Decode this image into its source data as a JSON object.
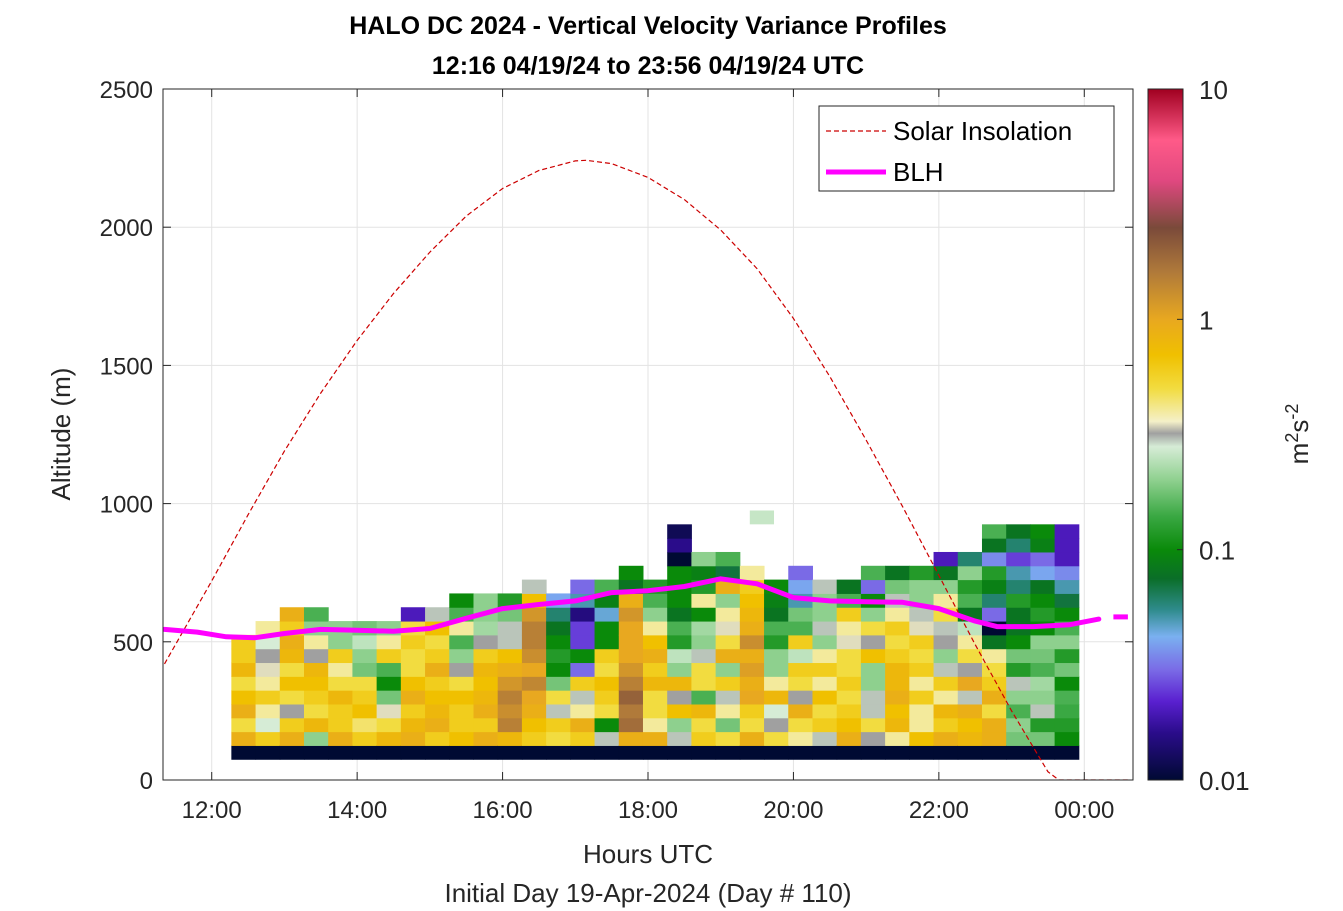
{
  "chart_data": {
    "type": "heatmap",
    "title": "HALO DC 2024 - Vertical Velocity Variance Profiles",
    "subtitle": "12:16 04/19/24 to 23:56 04/19/24  UTC",
    "xlabel": "Hours UTC",
    "ylabel": "Altitude (m)",
    "footer": "Initial Day 19-Apr-2024 (Day # 110)",
    "xlim": [
      11.33,
      24.67
    ],
    "ylim": [
      0,
      2500
    ],
    "x_ticks": [
      {
        "value": 12,
        "label": "12:00"
      },
      {
        "value": 14,
        "label": "14:00"
      },
      {
        "value": 16,
        "label": "16:00"
      },
      {
        "value": 18,
        "label": "18:00"
      },
      {
        "value": 20,
        "label": "20:00"
      },
      {
        "value": 22,
        "label": "22:00"
      },
      {
        "value": 24,
        "label": "00:00"
      }
    ],
    "y_ticks": [
      {
        "value": 0,
        "label": "0"
      },
      {
        "value": 500,
        "label": "500"
      },
      {
        "value": 1000,
        "label": "1000"
      },
      {
        "value": 1500,
        "label": "1500"
      },
      {
        "value": 2000,
        "label": "2000"
      },
      {
        "value": 2500,
        "label": "2500"
      }
    ],
    "grid": true,
    "legend": {
      "placement": "top-right",
      "entries": [
        {
          "label": "Solar Insolation",
          "style": "dashed",
          "color": "#cc0000"
        },
        {
          "label": "BLH",
          "style": "solid",
          "color": "#ff00ff"
        }
      ]
    },
    "colorbar": {
      "scale": "log",
      "range": [
        0.01,
        10
      ],
      "ticks": [
        {
          "value": 10,
          "label": "10"
        },
        {
          "value": 1,
          "label": "1"
        },
        {
          "value": 0.1,
          "label": "0.1"
        },
        {
          "value": 0.01,
          "label": "0.01"
        }
      ],
      "unit_base": "m",
      "unit_sup1": "2",
      "unit_mid": "s",
      "unit_sup2": "-2",
      "stops": [
        {
          "value": 0.01,
          "color": "#000a33"
        },
        {
          "value": 0.016,
          "color": "#2a0c8a"
        },
        {
          "value": 0.022,
          "color": "#5a20d0"
        },
        {
          "value": 0.03,
          "color": "#7a6ae6"
        },
        {
          "value": 0.042,
          "color": "#7ab0f0"
        },
        {
          "value": 0.055,
          "color": "#2e8b8b"
        },
        {
          "value": 0.075,
          "color": "#0a6e28"
        },
        {
          "value": 0.1,
          "color": "#0a8a0a"
        },
        {
          "value": 0.14,
          "color": "#3aa843"
        },
        {
          "value": 0.2,
          "color": "#8ed08e"
        },
        {
          "value": 0.28,
          "color": "#d6ecd6"
        },
        {
          "value": 0.32,
          "color": "#a0a0a0"
        },
        {
          "value": 0.36,
          "color": "#f4f0c8"
        },
        {
          "value": 0.5,
          "color": "#f2dc40"
        },
        {
          "value": 0.7,
          "color": "#f0c000"
        },
        {
          "value": 1.0,
          "color": "#e8a820"
        },
        {
          "value": 1.6,
          "color": "#b07a3a"
        },
        {
          "value": 2.5,
          "color": "#7a4a3a"
        },
        {
          "value": 4.0,
          "color": "#e04880"
        },
        {
          "value": 6.0,
          "color": "#ff5a88"
        },
        {
          "value": 10,
          "color": "#a00020"
        }
      ]
    },
    "solar_insolation": {
      "color": "#cc0000",
      "scaled_altitude": [
        {
          "x": 11.35,
          "y": 420
        },
        {
          "x": 12.0,
          "y": 720
        },
        {
          "x": 12.5,
          "y": 960
        },
        {
          "x": 13.0,
          "y": 1190
        },
        {
          "x": 13.5,
          "y": 1400
        },
        {
          "x": 14.0,
          "y": 1590
        },
        {
          "x": 14.5,
          "y": 1760
        },
        {
          "x": 15.0,
          "y": 1910
        },
        {
          "x": 15.5,
          "y": 2040
        },
        {
          "x": 16.0,
          "y": 2140
        },
        {
          "x": 16.5,
          "y": 2205
        },
        {
          "x": 17.0,
          "y": 2240
        },
        {
          "x": 17.15,
          "y": 2242
        },
        {
          "x": 17.5,
          "y": 2230
        },
        {
          "x": 18.0,
          "y": 2180
        },
        {
          "x": 18.5,
          "y": 2100
        },
        {
          "x": 19.0,
          "y": 1990
        },
        {
          "x": 19.5,
          "y": 1850
        },
        {
          "x": 20.0,
          "y": 1670
        },
        {
          "x": 20.5,
          "y": 1460
        },
        {
          "x": 21.0,
          "y": 1230
        },
        {
          "x": 21.5,
          "y": 990
        },
        {
          "x": 22.0,
          "y": 740
        },
        {
          "x": 22.5,
          "y": 490
        },
        {
          "x": 23.0,
          "y": 250
        },
        {
          "x": 23.5,
          "y": 30
        },
        {
          "x": 23.65,
          "y": 0
        },
        {
          "x": 24.6,
          "y": 0
        }
      ]
    },
    "blh": {
      "color": "#ff00ff",
      "points": [
        {
          "x": 11.35,
          "y": 545
        },
        {
          "x": 11.8,
          "y": 535
        },
        {
          "x": 12.2,
          "y": 518
        },
        {
          "x": 12.6,
          "y": 515
        },
        {
          "x": 13.0,
          "y": 530
        },
        {
          "x": 13.5,
          "y": 545
        },
        {
          "x": 14.0,
          "y": 542
        },
        {
          "x": 14.5,
          "y": 538
        },
        {
          "x": 15.0,
          "y": 548
        },
        {
          "x": 15.5,
          "y": 585
        },
        {
          "x": 16.0,
          "y": 620
        },
        {
          "x": 16.5,
          "y": 635
        },
        {
          "x": 17.0,
          "y": 648
        },
        {
          "x": 17.5,
          "y": 678
        },
        {
          "x": 18.0,
          "y": 685
        },
        {
          "x": 18.5,
          "y": 700
        },
        {
          "x": 19.0,
          "y": 728
        },
        {
          "x": 19.5,
          "y": 710
        },
        {
          "x": 20.0,
          "y": 660
        },
        {
          "x": 20.5,
          "y": 648
        },
        {
          "x": 21.0,
          "y": 645
        },
        {
          "x": 21.5,
          "y": 643
        },
        {
          "x": 22.0,
          "y": 620
        },
        {
          "x": 22.5,
          "y": 575
        },
        {
          "x": 22.8,
          "y": 555
        },
        {
          "x": 23.3,
          "y": 555
        },
        {
          "x": 23.8,
          "y": 562
        },
        {
          "x": 24.2,
          "y": 582
        }
      ],
      "extra_segment": [
        {
          "x": 24.4,
          "y": 590
        },
        {
          "x": 24.6,
          "y": 590
        }
      ]
    },
    "heatmap": {
      "x_start": 12.27,
      "dx": 0.333,
      "y_bins": [
        100,
        150,
        200,
        250,
        300,
        350,
        400,
        450,
        500,
        550,
        600,
        650,
        700,
        750,
        800,
        850,
        900
      ],
      "dy": 50,
      "columns": [
        [
          0.01,
          0.9,
          0.5,
          0.9,
          0.7,
          0.5,
          0.8,
          0.6,
          0.6,
          null,
          null,
          null,
          null,
          null,
          null,
          null,
          null
        ],
        [
          0.01,
          0.6,
          0.28,
          0.4,
          0.6,
          0.4,
          0.35,
          0.32,
          0.28,
          0.4,
          null,
          null,
          null,
          null,
          null,
          null,
          null
        ],
        [
          0.01,
          0.9,
          0.6,
          0.32,
          0.5,
          0.7,
          0.5,
          0.8,
          0.9,
          0.6,
          0.9,
          null,
          null,
          null,
          null,
          null,
          null
        ],
        [
          0.01,
          0.2,
          0.8,
          0.5,
          0.6,
          0.7,
          0.8,
          0.32,
          0.4,
          0.2,
          0.15,
          null,
          null,
          null,
          null,
          null,
          null
        ],
        [
          0.01,
          0.9,
          0.6,
          0.6,
          0.8,
          0.5,
          0.4,
          0.6,
          0.2,
          0.2,
          null,
          null,
          null,
          null,
          null,
          null,
          null
        ],
        [
          0.01,
          0.6,
          0.45,
          0.7,
          0.6,
          0.5,
          0.18,
          0.2,
          0.25,
          0.18,
          null,
          null,
          null,
          null,
          null,
          null,
          null
        ],
        [
          0.01,
          0.8,
          0.5,
          0.35,
          0.18,
          0.1,
          0.15,
          0.6,
          0.4,
          0.2,
          null,
          null,
          null,
          null,
          null,
          null,
          null
        ],
        [
          0.01,
          0.9,
          0.8,
          0.6,
          0.9,
          0.7,
          0.5,
          0.5,
          0.6,
          0.5,
          0.02,
          null,
          null,
          null,
          null,
          null,
          null
        ],
        [
          0.01,
          0.6,
          0.9,
          0.8,
          0.7,
          0.6,
          0.9,
          0.6,
          0.5,
          0.7,
          0.3,
          null,
          null,
          null,
          null,
          null,
          null
        ],
        [
          0.01,
          0.7,
          0.6,
          0.6,
          0.7,
          0.5,
          0.32,
          0.2,
          0.15,
          0.4,
          0.15,
          0.1,
          null,
          null,
          null,
          null,
          null
        ],
        [
          0.01,
          0.9,
          0.6,
          0.9,
          0.8,
          0.7,
          0.8,
          0.6,
          0.32,
          0.22,
          0.2,
          0.2,
          null,
          null,
          null,
          null,
          null
        ],
        [
          0.01,
          0.8,
          1.5,
          1.3,
          1.5,
          1.2,
          0.9,
          0.7,
          0.3,
          0.3,
          0.18,
          0.12,
          null,
          null,
          null,
          null,
          null
        ],
        [
          0.01,
          0.6,
          0.7,
          0.9,
          1.0,
          1.4,
          1.0,
          1.3,
          1.5,
          1.5,
          1.2,
          0.7,
          0.3,
          null,
          null,
          null,
          null
        ],
        [
          0.01,
          0.5,
          0.6,
          0.3,
          0.5,
          0.18,
          0.1,
          0.12,
          0.1,
          0.08,
          0.06,
          0.04,
          null,
          null,
          null,
          null,
          null
        ],
        [
          0.01,
          0.6,
          0.9,
          0.4,
          0.3,
          0.6,
          0.03,
          0.1,
          0.025,
          0.025,
          0.015,
          0.05,
          0.03,
          null,
          null,
          null,
          null
        ],
        [
          0.01,
          0.3,
          0.1,
          0.5,
          0.6,
          0.7,
          0.5,
          0.6,
          0.1,
          0.1,
          0.045,
          0.09,
          0.15,
          null,
          null,
          null,
          null
        ],
        [
          0.01,
          0.9,
          1.8,
          1.6,
          2.0,
          1.5,
          1.2,
          1.0,
          1.0,
          1.0,
          1.2,
          0.9,
          0.08,
          0.1,
          null,
          null,
          null
        ],
        [
          0.01,
          0.9,
          0.4,
          0.5,
          0.5,
          0.8,
          0.6,
          0.9,
          0.7,
          0.4,
          0.2,
          0.15,
          0.12,
          null,
          null,
          null,
          null
        ],
        [
          0.01,
          0.3,
          0.2,
          0.7,
          0.32,
          0.8,
          0.2,
          0.25,
          0.12,
          0.15,
          0.08,
          0.1,
          0.1,
          0.1,
          0.01,
          0.016,
          0.012
        ],
        [
          0.01,
          0.6,
          0.5,
          0.8,
          0.15,
          0.5,
          0.5,
          0.3,
          0.2,
          0.22,
          0.1,
          0.4,
          0.12,
          0.09,
          0.2,
          null,
          null
        ],
        [
          0.01,
          0.5,
          0.18,
          0.4,
          0.3,
          0.6,
          0.2,
          0.9,
          0.5,
          0.35,
          0.4,
          0.2,
          0.9,
          0.07,
          0.15,
          null,
          null
        ],
        [
          0.01,
          0.9,
          0.5,
          0.6,
          1.0,
          0.9,
          1.1,
          0.9,
          1.3,
          0.9,
          0.8,
          0.7,
          0.6,
          0.4,
          null,
          null,
          null
        ],
        [
          0.01,
          0.5,
          0.32,
          0.28,
          0.8,
          0.4,
          0.2,
          0.2,
          0.12,
          0.15,
          0.08,
          0.09,
          0.1,
          null,
          null,
          null,
          null
        ],
        [
          0.01,
          0.4,
          0.5,
          0.9,
          0.32,
          0.5,
          0.6,
          0.25,
          0.6,
          0.15,
          0.18,
          0.05,
          0.04,
          0.03,
          null,
          null,
          null
        ],
        [
          0.01,
          0.3,
          0.6,
          0.5,
          0.7,
          0.4,
          0.6,
          0.4,
          0.2,
          0.3,
          0.2,
          0.2,
          0.3,
          null,
          null,
          null,
          null
        ],
        [
          0.01,
          0.9,
          0.7,
          0.6,
          0.5,
          0.6,
          0.5,
          0.5,
          0.35,
          0.4,
          0.6,
          0.15,
          0.08,
          null,
          null,
          null,
          null
        ],
        [
          0.01,
          0.32,
          0.5,
          0.3,
          0.3,
          0.2,
          0.2,
          0.7,
          0.32,
          0.5,
          0.2,
          0.1,
          0.03,
          0.15,
          null,
          null,
          null
        ],
        [
          0.01,
          0.4,
          0.8,
          0.7,
          0.9,
          0.8,
          0.8,
          0.6,
          0.5,
          0.6,
          0.4,
          0.3,
          0.18,
          0.08,
          null,
          null,
          null
        ],
        [
          0.01,
          0.7,
          0.4,
          0.4,
          0.6,
          0.4,
          0.6,
          0.5,
          0.6,
          0.35,
          0.3,
          0.2,
          0.2,
          0.12,
          null,
          null,
          null
        ],
        [
          0.01,
          0.9,
          0.6,
          0.8,
          0.4,
          0.6,
          0.3,
          0.2,
          0.32,
          0.3,
          0.5,
          0.4,
          0.2,
          0.08,
          0.02,
          null,
          null
        ],
        [
          0.01,
          0.8,
          0.7,
          0.9,
          0.3,
          1.0,
          0.32,
          0.5,
          0.4,
          0.25,
          0.08,
          0.15,
          0.12,
          0.2,
          0.06,
          null,
          null
        ],
        [
          0.01,
          0.9,
          0.9,
          0.5,
          0.9,
          0.6,
          0.5,
          0.4,
          0.08,
          0.01,
          0.03,
          0.06,
          0.09,
          0.12,
          0.035,
          0.08,
          0.15
        ],
        [
          0.01,
          0.18,
          0.2,
          0.15,
          0.2,
          0.3,
          0.12,
          0.18,
          0.1,
          0.08,
          0.08,
          0.12,
          0.06,
          0.05,
          0.025,
          0.06,
          0.08
        ],
        [
          0.01,
          0.18,
          0.12,
          0.3,
          0.2,
          0.22,
          0.15,
          0.18,
          0.2,
          0.1,
          0.12,
          0.1,
          0.08,
          0.04,
          0.03,
          0.09,
          0.1
        ],
        [
          0.01,
          0.1,
          0.12,
          0.14,
          0.15,
          0.1,
          0.18,
          0.12,
          0.2,
          0.15,
          0.1,
          0.07,
          0.05,
          0.035,
          0.02,
          0.02,
          0.02
        ]
      ],
      "isolated_cells": [
        {
          "x": 19.4,
          "y": 950,
          "v": 0.26
        }
      ]
    }
  }
}
